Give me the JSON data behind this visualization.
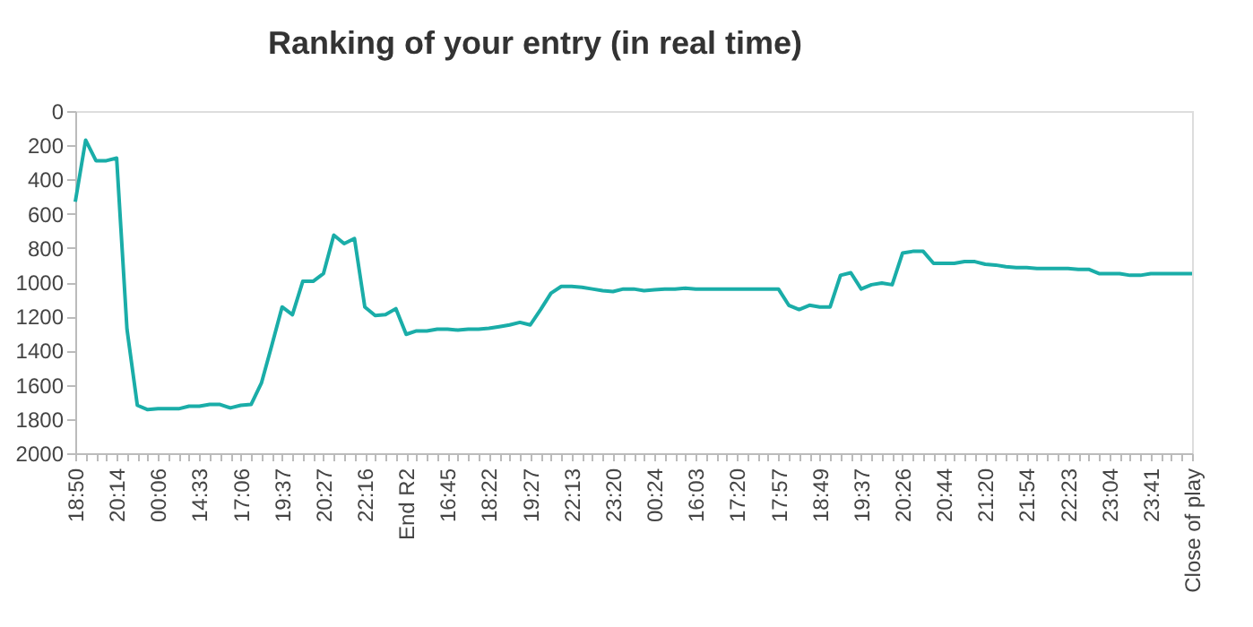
{
  "chart_data": {
    "type": "line",
    "title": "Ranking of your entry (in real time)",
    "categories": [
      "18:50",
      null,
      null,
      null,
      "20:14",
      null,
      null,
      null,
      "00:06",
      null,
      null,
      null,
      "14:33",
      null,
      null,
      null,
      "17:06",
      null,
      null,
      null,
      "19:37",
      null,
      null,
      null,
      "20:27",
      null,
      null,
      null,
      "22:16",
      null,
      null,
      null,
      "End R2",
      null,
      null,
      null,
      "16:45",
      null,
      null,
      null,
      "18:22",
      null,
      null,
      null,
      "19:27",
      null,
      null,
      null,
      "22:13",
      null,
      null,
      null,
      "23:20",
      null,
      null,
      null,
      "00:24",
      null,
      null,
      null,
      "16:03",
      null,
      null,
      null,
      "17:20",
      null,
      null,
      null,
      "17:57",
      null,
      null,
      null,
      "18:49",
      null,
      null,
      null,
      "19:37",
      null,
      null,
      null,
      "20:26",
      null,
      null,
      null,
      "20:44",
      null,
      null,
      null,
      "21:20",
      null,
      null,
      null,
      "21:54",
      null,
      null,
      null,
      "22:23",
      null,
      null,
      null,
      "23:04",
      null,
      null,
      null,
      "23:41",
      null,
      null,
      null,
      "Close of play"
    ],
    "series": [
      {
        "color": "#1aada8",
        "values": [
          530,
          170,
          290,
          290,
          275,
          1275,
          1720,
          1745,
          1740,
          1740,
          1740,
          1725,
          1725,
          1715,
          1715,
          1735,
          1720,
          1715,
          1590,
          1370,
          1145,
          1190,
          995,
          995,
          950,
          725,
          775,
          745,
          1145,
          1195,
          1190,
          1155,
          1305,
          1285,
          1285,
          1275,
          1275,
          1280,
          1275,
          1275,
          1270,
          1260,
          1250,
          1235,
          1250,
          1160,
          1065,
          1025,
          1025,
          1030,
          1040,
          1050,
          1055,
          1040,
          1040,
          1050,
          1045,
          1040,
          1040,
          1035,
          1040,
          1040,
          1040,
          1040,
          1040,
          1040,
          1040,
          1040,
          1040,
          1135,
          1160,
          1135,
          1145,
          1145,
          960,
          945,
          1040,
          1015,
          1005,
          1015,
          830,
          820,
          820,
          890,
          890,
          890,
          880,
          880,
          895,
          900,
          910,
          915,
          915,
          920,
          920,
          920,
          920,
          925,
          925,
          950,
          950,
          950,
          960,
          960,
          950,
          950,
          950,
          950,
          950
        ]
      }
    ],
    "ylim": [
      2000,
      0
    ],
    "yticks": [
      0,
      200,
      400,
      600,
      800,
      1000,
      1200,
      1400,
      1600,
      1800,
      2000
    ],
    "grid": false
  }
}
